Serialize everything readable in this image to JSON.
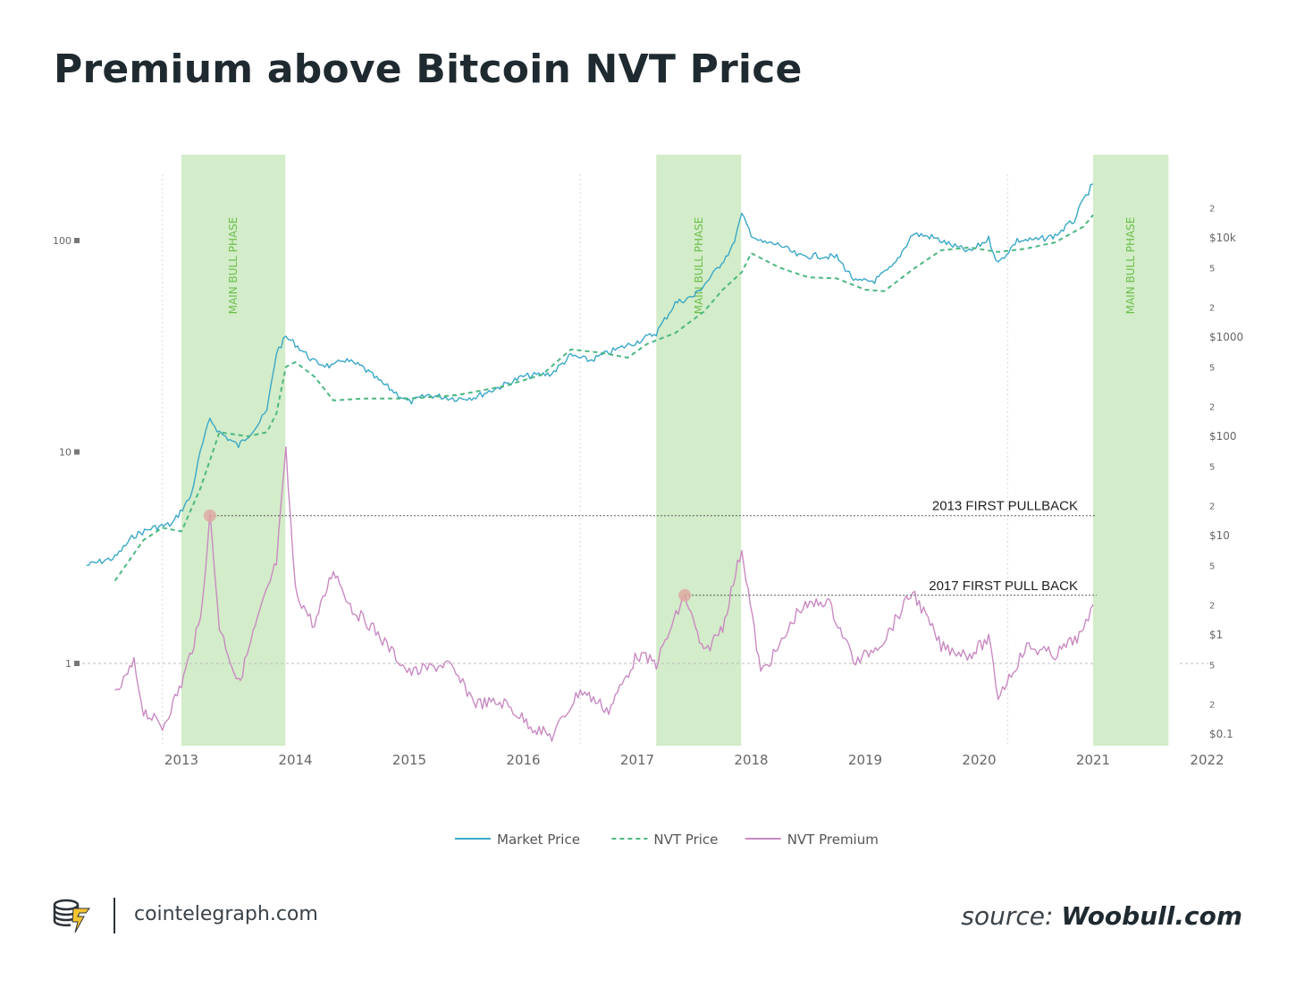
{
  "header": {
    "title": "Premium above Bitcoin NVT Price"
  },
  "footer": {
    "site": "cointelegraph.com",
    "source_prefix": "source:",
    "source_name": "Woobull.com"
  },
  "chart_data": {
    "type": "line",
    "x_ticks": [
      "2013",
      "2014",
      "2015",
      "2016",
      "2017",
      "2018",
      "2019",
      "2020",
      "2021",
      "2022"
    ],
    "xlim": [
      "2012-03",
      "2022-01"
    ],
    "left_axis": {
      "scale": "log",
      "ticks": [
        "100",
        "10",
        "1"
      ]
    },
    "right_axis": {
      "scale": "log",
      "ticks": [
        "2",
        "$10k",
        "5",
        "2",
        "$1000",
        "5",
        "2",
        "$100",
        "5",
        "2",
        "$10",
        "5",
        "2",
        "$1",
        "5",
        "2",
        "$0.1"
      ]
    },
    "bull_phases": [
      {
        "label": "MAIN BULL PHASE",
        "start": "2013-01",
        "end": "2013-11"
      },
      {
        "label": "MAIN BULL PHASE",
        "start": "2017-03",
        "end": "2017-11"
      },
      {
        "label": "MAIN BULL PHASE",
        "start": "2021-01",
        "end": "2021-08"
      }
    ],
    "annotations": [
      {
        "label": "2013 FIRST PULLBACK",
        "date": "2013-04",
        "value": 5.0
      },
      {
        "label": "2017 FIRST PULL BACK",
        "date": "2017-06",
        "value": 2.1
      }
    ],
    "legend": {
      "position": "bottom-center"
    },
    "series": [
      {
        "name": "Market Price",
        "axis": "right",
        "color": "#3aa8c8",
        "style": "solid",
        "points": [
          [
            "2012-03",
            5
          ],
          [
            "2012-06",
            6
          ],
          [
            "2012-08",
            10
          ],
          [
            "2012-10",
            12
          ],
          [
            "2012-12",
            13
          ],
          [
            "2013-02",
            25
          ],
          [
            "2013-03",
            70
          ],
          [
            "2013-04",
            150
          ],
          [
            "2013-05",
            110
          ],
          [
            "2013-07",
            80
          ],
          [
            "2013-09",
            130
          ],
          [
            "2013-10",
            180
          ],
          [
            "2013-11",
            700
          ],
          [
            "2013-12",
            1000
          ],
          [
            "2014-01",
            850
          ],
          [
            "2014-03",
            560
          ],
          [
            "2014-05",
            500
          ],
          [
            "2014-06",
            600
          ],
          [
            "2014-08",
            500
          ],
          [
            "2014-10",
            350
          ],
          [
            "2015-01",
            220
          ],
          [
            "2015-03",
            260
          ],
          [
            "2015-06",
            240
          ],
          [
            "2015-08",
            250
          ],
          [
            "2015-11",
            330
          ],
          [
            "2016-01",
            400
          ],
          [
            "2016-04",
            430
          ],
          [
            "2016-06",
            650
          ],
          [
            "2016-08",
            580
          ],
          [
            "2016-10",
            700
          ],
          [
            "2017-01",
            900
          ],
          [
            "2017-03",
            1100
          ],
          [
            "2017-05",
            2200
          ],
          [
            "2017-07",
            2600
          ],
          [
            "2017-09",
            4300
          ],
          [
            "2017-11",
            8000
          ],
          [
            "2017-12",
            17000
          ],
          [
            "2018-01",
            11000
          ],
          [
            "2018-02",
            9000
          ],
          [
            "2018-04",
            8500
          ],
          [
            "2018-06",
            6500
          ],
          [
            "2018-08",
            6600
          ],
          [
            "2018-10",
            6400
          ],
          [
            "2018-12",
            3600
          ],
          [
            "2019-02",
            3700
          ],
          [
            "2019-04",
            5200
          ],
          [
            "2019-06",
            11000
          ],
          [
            "2019-08",
            10200
          ],
          [
            "2019-10",
            8500
          ],
          [
            "2019-12",
            7200
          ],
          [
            "2020-02",
            9800
          ],
          [
            "2020-03",
            5500
          ],
          [
            "2020-05",
            9400
          ],
          [
            "2020-07",
            9500
          ],
          [
            "2020-09",
            10500
          ],
          [
            "2020-11",
            15000
          ],
          [
            "2020-12",
            24000
          ],
          [
            "2021-01",
            35000
          ]
        ]
      },
      {
        "name": "NVT Price",
        "axis": "right",
        "color": "#4cb882",
        "style": "dashed",
        "points": [
          [
            "2012-06",
            3.5
          ],
          [
            "2012-09",
            9
          ],
          [
            "2012-11",
            12
          ],
          [
            "2013-01",
            11
          ],
          [
            "2013-03",
            30
          ],
          [
            "2013-05",
            110
          ],
          [
            "2013-08",
            100
          ],
          [
            "2013-10",
            110
          ],
          [
            "2013-11",
            170
          ],
          [
            "2013-12",
            500
          ],
          [
            "2014-01",
            560
          ],
          [
            "2014-03",
            400
          ],
          [
            "2014-05",
            230
          ],
          [
            "2014-08",
            240
          ],
          [
            "2015-01",
            240
          ],
          [
            "2015-06",
            260
          ],
          [
            "2015-11",
            320
          ],
          [
            "2016-03",
            420
          ],
          [
            "2016-06",
            750
          ],
          [
            "2016-09",
            700
          ],
          [
            "2016-12",
            620
          ],
          [
            "2017-02",
            850
          ],
          [
            "2017-05",
            1100
          ],
          [
            "2017-08",
            1800
          ],
          [
            "2017-10",
            3000
          ],
          [
            "2017-12",
            4500
          ],
          [
            "2018-01",
            7000
          ],
          [
            "2018-04",
            5000
          ],
          [
            "2018-07",
            4000
          ],
          [
            "2018-10",
            3900
          ],
          [
            "2019-01",
            3000
          ],
          [
            "2019-03",
            2900
          ],
          [
            "2019-06",
            4800
          ],
          [
            "2019-09",
            7500
          ],
          [
            "2019-12",
            8000
          ],
          [
            "2020-03",
            7200
          ],
          [
            "2020-06",
            7800
          ],
          [
            "2020-09",
            9000
          ],
          [
            "2020-12",
            13000
          ],
          [
            "2021-01",
            17000
          ]
        ]
      },
      {
        "name": "NVT Premium",
        "axis": "left",
        "color": "#c98ac2",
        "style": "solid",
        "points": [
          [
            "2012-06",
            0.7
          ],
          [
            "2012-08",
            1.0
          ],
          [
            "2012-09",
            0.6
          ],
          [
            "2012-11",
            0.5
          ],
          [
            "2013-01",
            0.8
          ],
          [
            "2013-03",
            1.6
          ],
          [
            "2013-04",
            5.0
          ],
          [
            "2013-05",
            1.5
          ],
          [
            "2013-07",
            0.8
          ],
          [
            "2013-09",
            1.6
          ],
          [
            "2013-11",
            3.0
          ],
          [
            "2013-12",
            10.0
          ],
          [
            "2014-01",
            2.2
          ],
          [
            "2014-03",
            1.5
          ],
          [
            "2014-05",
            2.8
          ],
          [
            "2014-07",
            1.8
          ],
          [
            "2014-09",
            1.5
          ],
          [
            "2015-01",
            0.9
          ],
          [
            "2015-05",
            1.0
          ],
          [
            "2015-08",
            0.65
          ],
          [
            "2015-11",
            0.65
          ],
          [
            "2016-02",
            0.5
          ],
          [
            "2016-04",
            0.45
          ],
          [
            "2016-07",
            0.75
          ],
          [
            "2016-10",
            0.6
          ],
          [
            "2017-01",
            1.1
          ],
          [
            "2017-03",
            1.0
          ],
          [
            "2017-06",
            2.1
          ],
          [
            "2017-08",
            1.1
          ],
          [
            "2017-10",
            1.5
          ],
          [
            "2017-12",
            3.5
          ],
          [
            "2018-02",
            0.9
          ],
          [
            "2018-04",
            1.2
          ],
          [
            "2018-06",
            1.8
          ],
          [
            "2018-09",
            2.0
          ],
          [
            "2018-12",
            1.0
          ],
          [
            "2019-03",
            1.3
          ],
          [
            "2019-06",
            2.2
          ],
          [
            "2019-09",
            1.2
          ],
          [
            "2019-12",
            1.1
          ],
          [
            "2020-02",
            1.3
          ],
          [
            "2020-03",
            0.7
          ],
          [
            "2020-06",
            1.2
          ],
          [
            "2020-09",
            1.1
          ],
          [
            "2020-12",
            1.4
          ],
          [
            "2021-01",
            1.9
          ]
        ]
      }
    ]
  }
}
